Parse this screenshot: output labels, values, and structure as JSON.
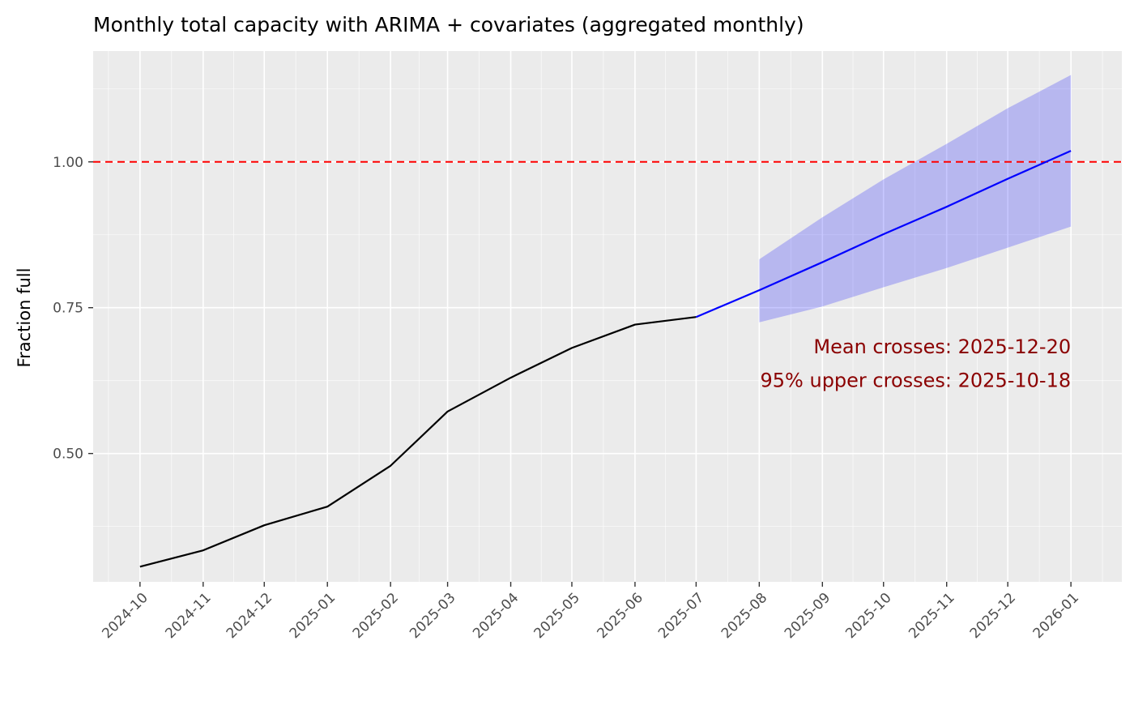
{
  "chart_data": {
    "type": "line",
    "title": "Monthly total capacity with ARIMA + covariates (aggregated monthly)",
    "xlabel": "",
    "ylabel": "Fraction full",
    "x_ticks": [
      "2024-10",
      "2024-11",
      "2024-12",
      "2025-01",
      "2025-02",
      "2025-03",
      "2025-04",
      "2025-05",
      "2025-06",
      "2025-07",
      "2025-08",
      "2025-09",
      "2025-10",
      "2025-11",
      "2025-12",
      "2026-01"
    ],
    "y_ticks": [
      0.5,
      0.75,
      1.0
    ],
    "ylim": [
      0.28,
      1.19
    ],
    "xlim": [
      "2024-09-08",
      "2026-01-26"
    ],
    "grid": true,
    "series": [
      {
        "role": "observed",
        "color": "#000000",
        "x": [
          "2024-10",
          "2024-11",
          "2024-12",
          "2025-01",
          "2025-02",
          "2025-03",
          "2025-04",
          "2025-05",
          "2025-06",
          "2025-07"
        ],
        "values": [
          0.306,
          0.334,
          0.377,
          0.409,
          0.479,
          0.572,
          0.63,
          0.681,
          0.721,
          0.734
        ]
      },
      {
        "role": "forecast-mean",
        "color": "#0000ff",
        "x": [
          "2025-07",
          "2025-08",
          "2025-09",
          "2025-10",
          "2025-11",
          "2025-12",
          "2026-01"
        ],
        "values": [
          0.734,
          0.78,
          0.828,
          0.876,
          0.923,
          0.971,
          1.019
        ]
      }
    ],
    "band": {
      "role": "forecast-95-interval",
      "color": "#0000ff",
      "opacity": 0.22,
      "x": [
        "2025-08",
        "2025-09",
        "2025-10",
        "2025-11",
        "2025-12",
        "2026-01"
      ],
      "lower": [
        0.725,
        0.752,
        0.785,
        0.818,
        0.853,
        0.889
      ],
      "upper": [
        0.833,
        0.905,
        0.97,
        1.031,
        1.092,
        1.149
      ]
    },
    "threshold": {
      "y": 1.0,
      "color": "#ff0000",
      "style": "dashed"
    },
    "annotations": [
      {
        "text": "Mean crosses: 2025-12-20",
        "color": "#8b0000"
      },
      {
        "text": "95% upper crosses: 2025-10-18",
        "color": "#8b0000"
      }
    ],
    "colors": {
      "panel": "#ebebeb",
      "grid": "#ffffff",
      "axis_text": "#4d4d4d"
    }
  }
}
